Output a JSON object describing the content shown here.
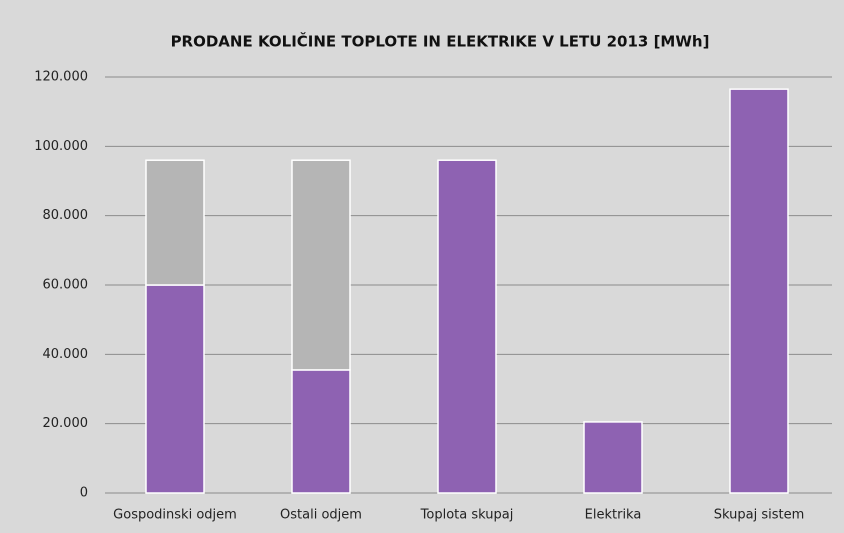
{
  "chart_data": {
    "type": "bar",
    "stacked": true,
    "title": "PRODANE KOLIČINE TOPLOTE IN ELEKTRIKE V LETU 2013 [MWh]",
    "categories": [
      "Gospodinski odjem",
      "Ostali odjem",
      "Toplota skupaj",
      "Elektrika",
      "Skupaj sistem"
    ],
    "series": [
      {
        "color": "#8e62b2",
        "values": [
          60000,
          35500,
          96000,
          20500,
          116500
        ]
      },
      {
        "color": "#b5b5b5",
        "values": [
          36000,
          60500,
          null,
          null,
          null
        ]
      }
    ],
    "ylim": [
      0,
      120000
    ],
    "yticks": [
      0,
      {
        "value": 20000,
        "label": "20.000"
      },
      {
        "value": 40000,
        "label": "40.000"
      },
      {
        "value": 60000,
        "label": "60.000"
      },
      {
        "value": 80000,
        "label": "80.000"
      },
      {
        "value": 100000,
        "label": "100.000"
      },
      {
        "value": 120000,
        "label": "120.000"
      }
    ],
    "grid": true
  }
}
